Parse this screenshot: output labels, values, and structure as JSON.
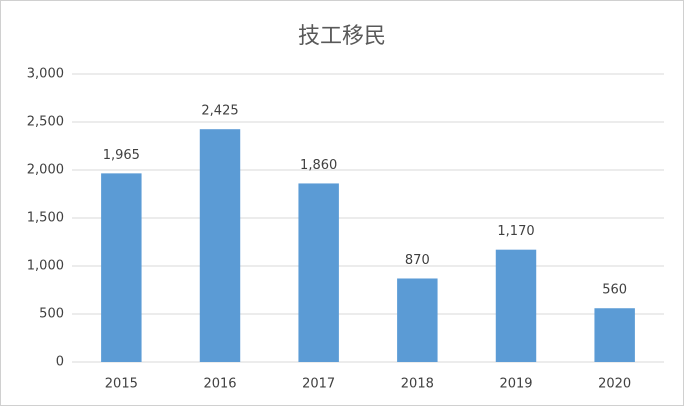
{
  "chart_data": {
    "type": "bar",
    "title": "技工移民",
    "categories": [
      "2015",
      "2016",
      "2017",
      "2018",
      "2019",
      "2020"
    ],
    "values": [
      1965,
      2425,
      1860,
      870,
      1170,
      560
    ],
    "value_labels": [
      "1,965",
      "2,425",
      "1,860",
      "870",
      "1,170",
      "560"
    ],
    "color": "#5b9bd5",
    "ylim": [
      0,
      3000
    ],
    "yticks": [
      0,
      500,
      {
        "value": 1000,
        "label": "1,000"
      },
      {
        "value": 1500,
        "label": "1,500"
      },
      {
        "value": 2000,
        "label": "2,000"
      },
      {
        "value": 2500,
        "label": "2,500"
      },
      {
        "value": 3000,
        "label": "3,000"
      }
    ],
    "grid": true
  }
}
